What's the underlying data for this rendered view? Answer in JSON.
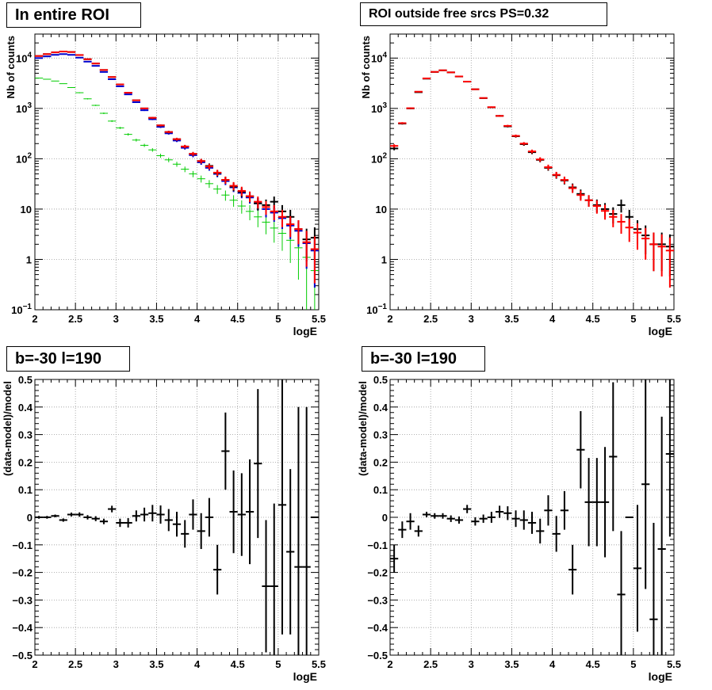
{
  "chart_data": [
    {
      "type": "scatter",
      "title": "In entire ROI",
      "xlabel": "logE",
      "ylabel": "Nb of counts",
      "xlim": [
        2,
        5.5
      ],
      "ylim": [
        0.1,
        30000
      ],
      "log_y": true,
      "grid": true,
      "x_ticks": [
        "2",
        "2.5",
        "3",
        "3.5",
        "4",
        "4.5",
        "5",
        "5.5"
      ],
      "y_ticks": [
        "10^-1",
        "1",
        "10",
        "10^2",
        "10^3",
        "10^4"
      ],
      "x": [
        2.05,
        2.15,
        2.25,
        2.35,
        2.45,
        2.55,
        2.65,
        2.75,
        2.85,
        2.95,
        3.05,
        3.15,
        3.25,
        3.35,
        3.45,
        3.55,
        3.65,
        3.75,
        3.85,
        3.95,
        4.05,
        4.15,
        4.25,
        4.35,
        4.45,
        4.55,
        4.65,
        4.75,
        4.85,
        4.95,
        5.05,
        5.15,
        5.25,
        5.35,
        5.45
      ],
      "series": [
        {
          "color": "#000000",
          "values": [
            11000,
            12000,
            13000,
            13500,
            13200,
            11500,
            9500,
            7800,
            5800,
            4200,
            3000,
            2050,
            1450,
            1000,
            650,
            460,
            340,
            245,
            175,
            125,
            90,
            72,
            52,
            38,
            28,
            22,
            18,
            13,
            12,
            14,
            9,
            7,
            4,
            2.5,
            2.7
          ]
        },
        {
          "color": "#ff0000",
          "values": [
            11000,
            12000,
            13000,
            13500,
            13200,
            11500,
            9500,
            7800,
            5800,
            4200,
            3000,
            2050,
            1450,
            1000,
            650,
            460,
            340,
            245,
            175,
            125,
            90,
            70,
            53,
            38,
            29,
            23,
            18,
            14,
            11,
            9,
            7,
            5,
            4,
            2.2,
            1.6
          ]
        },
        {
          "color": "#0000cc",
          "values": [
            10000,
            10800,
            11600,
            12000,
            11600,
            10200,
            8500,
            7000,
            5300,
            3800,
            2750,
            1900,
            1330,
            920,
            610,
            430,
            320,
            230,
            165,
            118,
            85,
            66,
            50,
            36,
            27,
            21,
            17,
            13,
            10,
            8.5,
            6.6,
            4.7,
            3.7,
            2.1,
            1.5
          ]
        },
        {
          "color": "#00cc00",
          "values": [
            4000,
            3800,
            3500,
            3100,
            2600,
            2050,
            1550,
            1150,
            800,
            560,
            410,
            305,
            235,
            185,
            150,
            115,
            95,
            78,
            62,
            50,
            40,
            32,
            25,
            19,
            15,
            11.5,
            9,
            7,
            5.5,
            4.2,
            3.3,
            2.4,
            1.7,
            1.1,
            0.6
          ]
        }
      ]
    },
    {
      "type": "scatter",
      "title": "ROI outside free srcs PS=0.32",
      "xlabel": "logE",
      "ylabel": "Nb of counts",
      "xlim": [
        2,
        5.5
      ],
      "ylim": [
        0.1,
        30000
      ],
      "log_y": true,
      "grid": true,
      "x_ticks": [
        "2",
        "2.5",
        "3",
        "3.5",
        "4",
        "4.5",
        "5",
        "5.5"
      ],
      "y_ticks": [
        "10^-1",
        "1",
        "10",
        "10^2",
        "10^3",
        "10^4"
      ],
      "x": [
        2.05,
        2.15,
        2.25,
        2.35,
        2.45,
        2.55,
        2.65,
        2.75,
        2.85,
        2.95,
        3.05,
        3.15,
        3.25,
        3.35,
        3.45,
        3.55,
        3.65,
        3.75,
        3.85,
        3.95,
        4.05,
        4.15,
        4.25,
        4.35,
        4.45,
        4.55,
        4.65,
        4.75,
        4.85,
        4.95,
        5.05,
        5.15,
        5.25,
        5.35,
        5.45
      ],
      "series": [
        {
          "color": "#000000",
          "values": [
            160,
            500,
            1000,
            2100,
            3900,
            5300,
            5700,
            5200,
            4300,
            3400,
            2400,
            1600,
            1050,
            710,
            440,
            280,
            195,
            135,
            95,
            66,
            47,
            37,
            27,
            20,
            15,
            12,
            10,
            8,
            12,
            7,
            4,
            3,
            2,
            2,
            1.8
          ]
        },
        {
          "color": "#ff0000",
          "values": [
            180,
            510,
            1010,
            2150,
            3950,
            5320,
            5720,
            5200,
            4320,
            3410,
            2400,
            1610,
            1060,
            710,
            450,
            285,
            200,
            140,
            97,
            68,
            48,
            38,
            26,
            19,
            15,
            11.5,
            9.2,
            7,
            5.6,
            4.3,
            3.4,
            2.6,
            2,
            1.8,
            1.5
          ]
        }
      ]
    },
    {
      "type": "scatter",
      "title": "b=-30 l=190",
      "xlabel": "logE",
      "ylabel": "(data-model)/model",
      "xlim": [
        2,
        5.5
      ],
      "ylim": [
        -0.5,
        0.5
      ],
      "grid": true,
      "x_ticks": [
        "2",
        "2.5",
        "3",
        "3.5",
        "4",
        "4.5",
        "5",
        "5.5"
      ],
      "y_ticks": [
        "-0.5",
        "-0.4",
        "-0.3",
        "-0.2",
        "-0.1",
        "0",
        "0.1",
        "0.2",
        "0.3",
        "0.4",
        "0.5"
      ],
      "x": [
        2.05,
        2.15,
        2.25,
        2.35,
        2.45,
        2.55,
        2.65,
        2.75,
        2.85,
        2.95,
        3.05,
        3.15,
        3.25,
        3.35,
        3.45,
        3.55,
        3.65,
        3.75,
        3.85,
        3.95,
        4.05,
        4.15,
        4.25,
        4.35,
        4.45,
        4.55,
        4.65,
        4.75,
        4.85,
        4.95,
        5.05,
        5.15,
        5.25,
        5.35,
        5.45
      ],
      "values": [
        0.0,
        0.0,
        0.005,
        -0.01,
        0.01,
        0.01,
        0.0,
        -0.005,
        -0.015,
        0.03,
        -0.02,
        -0.02,
        0.005,
        0.01,
        0.015,
        0.01,
        -0.01,
        -0.025,
        -0.06,
        0.01,
        -0.05,
        0.0,
        -0.19,
        0.24,
        0.02,
        0.01,
        0.02,
        0.195,
        -0.25,
        -0.25,
        0.045,
        -0.125,
        -0.18,
        -0.18,
        0.0
      ],
      "errors": [
        0.005,
        0.005,
        0.005,
        0.006,
        0.007,
        0.008,
        0.008,
        0.009,
        0.01,
        0.012,
        0.015,
        0.017,
        0.02,
        0.025,
        0.03,
        0.033,
        0.04,
        0.045,
        0.05,
        0.055,
        0.065,
        0.07,
        0.09,
        0.14,
        0.15,
        0.15,
        0.19,
        0.27,
        0.24,
        0.3,
        0.47,
        0.3,
        0.58,
        0.58,
        0.0
      ]
    },
    {
      "type": "scatter",
      "title": "b=-30 l=190",
      "xlabel": "logE",
      "ylabel": "(data-model)/model",
      "xlim": [
        2,
        5.5
      ],
      "ylim": [
        -0.5,
        0.5
      ],
      "grid": true,
      "x_ticks": [
        "2",
        "2.5",
        "3",
        "3.5",
        "4",
        "4.5",
        "5",
        "5.5"
      ],
      "y_ticks": [
        "-0.5",
        "-0.4",
        "-0.3",
        "-0.2",
        "-0.1",
        "0",
        "0.1",
        "0.2",
        "0.3",
        "0.4",
        "0.5"
      ],
      "x": [
        2.05,
        2.15,
        2.25,
        2.35,
        2.45,
        2.55,
        2.65,
        2.75,
        2.85,
        2.95,
        3.05,
        3.15,
        3.25,
        3.35,
        3.45,
        3.55,
        3.65,
        3.75,
        3.85,
        3.95,
        4.05,
        4.15,
        4.25,
        4.35,
        4.45,
        4.55,
        4.65,
        4.75,
        4.85,
        4.95,
        5.05,
        5.15,
        5.25,
        5.35,
        5.45
      ],
      "values": [
        -0.15,
        -0.045,
        -0.015,
        -0.05,
        0.01,
        0.005,
        0.005,
        -0.005,
        -0.01,
        0.03,
        -0.015,
        -0.005,
        0.0,
        0.02,
        0.015,
        -0.005,
        -0.01,
        -0.02,
        -0.05,
        0.025,
        -0.06,
        0.025,
        -0.19,
        0.245,
        0.055,
        0.055,
        0.055,
        0.22,
        -0.28,
        0.0,
        -0.185,
        0.12,
        -0.37,
        -0.115,
        0.23
      ],
      "errors": [
        0.05,
        0.03,
        0.03,
        0.02,
        0.01,
        0.01,
        0.01,
        0.012,
        0.013,
        0.015,
        0.015,
        0.015,
        0.02,
        0.022,
        0.025,
        0.03,
        0.035,
        0.04,
        0.045,
        0.055,
        0.065,
        0.07,
        0.09,
        0.14,
        0.16,
        0.16,
        0.2,
        0.27,
        0.23,
        0.0,
        0.23,
        0.38,
        0.35,
        0.48,
        0.3
      ]
    }
  ]
}
